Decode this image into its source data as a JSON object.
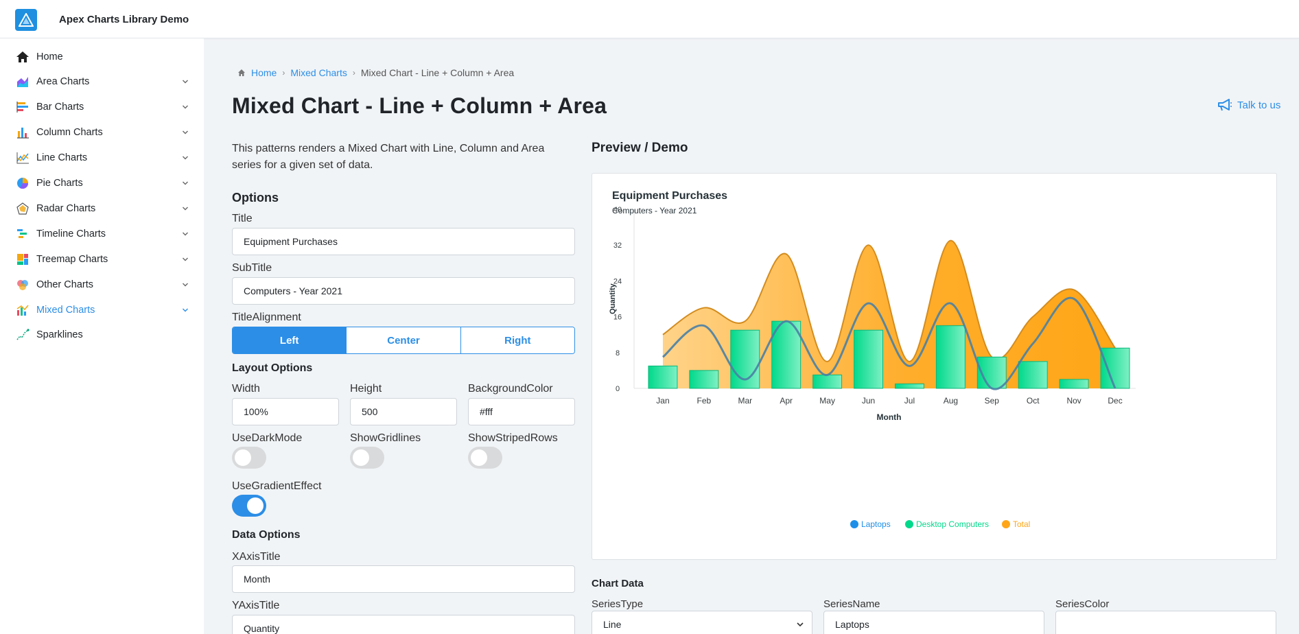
{
  "app": {
    "title": "Apex Charts Library Demo"
  },
  "sidebar": {
    "items": [
      {
        "label": "Home",
        "icon": "home-icon",
        "chevron": false
      },
      {
        "label": "Area Charts",
        "icon": "area-chart-icon",
        "chevron": true
      },
      {
        "label": "Bar Charts",
        "icon": "bar-chart-icon",
        "chevron": true
      },
      {
        "label": "Column Charts",
        "icon": "column-chart-icon",
        "chevron": true
      },
      {
        "label": "Line Charts",
        "icon": "line-chart-icon",
        "chevron": true
      },
      {
        "label": "Pie Charts",
        "icon": "pie-chart-icon",
        "chevron": true
      },
      {
        "label": "Radar Charts",
        "icon": "radar-chart-icon",
        "chevron": true
      },
      {
        "label": "Timeline Charts",
        "icon": "timeline-chart-icon",
        "chevron": true
      },
      {
        "label": "Treemap Charts",
        "icon": "treemap-chart-icon",
        "chevron": true
      },
      {
        "label": "Other Charts",
        "icon": "other-chart-icon",
        "chevron": true
      },
      {
        "label": "Mixed Charts",
        "icon": "mixed-chart-icon",
        "chevron": true,
        "active": true
      },
      {
        "label": "Sparklines",
        "icon": "sparkline-icon",
        "chevron": false
      }
    ]
  },
  "breadcrumb": {
    "home": "Home",
    "section": "Mixed Charts",
    "current": "Mixed Chart - Line + Column + Area"
  },
  "page": {
    "title": "Mixed Chart - Line + Column + Area",
    "talk_label": "Talk to us",
    "description": "This patterns renders a Mixed Chart with Line, Column and Area series for a given set of data.",
    "preview_heading": "Preview / Demo"
  },
  "options": {
    "heading": "Options",
    "title_label": "Title",
    "title_value": "Equipment Purchases",
    "subtitle_label": "SubTitle",
    "subtitle_value": "Computers - Year 2021",
    "alignment_label": "TitleAlignment",
    "alignment_options": [
      "Left",
      "Center",
      "Right"
    ],
    "alignment_selected": "Left",
    "layout_heading": "Layout Options",
    "width_label": "Width",
    "width_value": "100%",
    "height_label": "Height",
    "height_value": "500",
    "bg_label": "BackgroundColor",
    "bg_value": "#fff",
    "dark_label": "UseDarkMode",
    "dark_on": false,
    "grid_label": "ShowGridlines",
    "grid_on": false,
    "striped_label": "ShowStripedRows",
    "striped_on": false,
    "gradient_label": "UseGradientEffect",
    "gradient_on": true,
    "data_heading": "Data Options",
    "xaxis_label": "XAxisTitle",
    "xaxis_value": "Month",
    "yaxis_label": "YAxisTitle",
    "yaxis_value": "Quantity"
  },
  "chart_data_form": {
    "heading": "Chart Data",
    "series_type_label": "SeriesType",
    "series_type_value": "Line",
    "series_name_label": "SeriesName",
    "series_name_value": "Laptops",
    "series_color_label": "SeriesColor",
    "series_color_value": ""
  },
  "colors": {
    "accent": "#2c8ee6",
    "laptops": "#1d8fe8",
    "desktop": "#00d98b",
    "total": "#ffa618"
  },
  "chart_data": {
    "type": "mixed",
    "title": "Equipment Purchases",
    "subtitle": "Computers - Year 2021",
    "xlabel": "Month",
    "ylabel": "Quantity",
    "categories": [
      "Jan",
      "Feb",
      "Mar",
      "Apr",
      "May",
      "Jun",
      "Jul",
      "Aug",
      "Sep",
      "Oct",
      "Nov",
      "Dec"
    ],
    "ylim": [
      0,
      40
    ],
    "yticks": [
      0,
      8,
      16,
      24,
      32,
      40
    ],
    "grid": false,
    "legend_position": "bottom",
    "series": [
      {
        "name": "Laptops",
        "type": "line",
        "color": "#1d8fe8",
        "values": [
          7,
          14,
          2,
          15,
          3,
          19,
          5,
          19,
          0,
          10,
          20,
          0
        ]
      },
      {
        "name": "Desktop Computers",
        "type": "column",
        "color": "#00d98b",
        "values": [
          5,
          4,
          13,
          15,
          3,
          13,
          1,
          14,
          7,
          6,
          2,
          9
        ]
      },
      {
        "name": "Total",
        "type": "area",
        "color": "#ffa618",
        "values": [
          12,
          18,
          15,
          30,
          6,
          32,
          6,
          33,
          7,
          16,
          22,
          9
        ]
      }
    ]
  }
}
